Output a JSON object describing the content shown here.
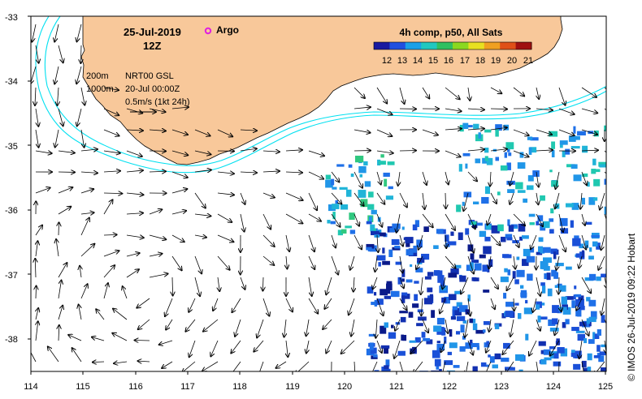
{
  "map": {
    "date": "25-Jul-2019",
    "hour": "12Z",
    "argo_label": "Argo",
    "product_title": "4h comp, p50, All Sats",
    "colorbar_ticks": [
      "12",
      "13",
      "14",
      "15",
      "16",
      "17",
      "18",
      "19",
      "20",
      "21"
    ],
    "colorbar_colors": [
      "#1a1aa0",
      "#2050e0",
      "#1aa0e8",
      "#20c8c0",
      "#30c060",
      "#8ad820",
      "#e8e020",
      "#f0a020",
      "#e05018",
      "#a01010"
    ],
    "isobath_200": "200m",
    "isobath_1000": "1000m",
    "current_source": "NRT00 GSL",
    "current_date": "20-Jul 00:00Z",
    "current_scale": "0.5m/s (1kt 24h)",
    "credit": "© IMOS 26-Jul-2019 09:22 Hobart",
    "lon_ticks": [
      "114",
      "115",
      "116",
      "117",
      "118",
      "119",
      "120",
      "121",
      "122",
      "123",
      "124",
      "125"
    ],
    "lat_ticks": [
      "-33",
      "-34",
      "-35",
      "-36",
      "-37",
      "-38"
    ],
    "land_color": "#f8c89a",
    "isobath_color": "#00e0f0"
  }
}
